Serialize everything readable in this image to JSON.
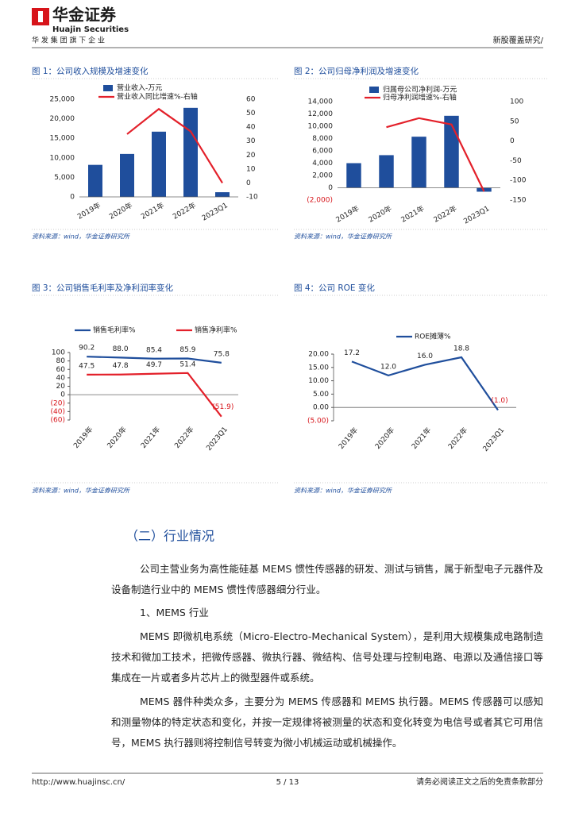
{
  "header": {
    "logo_cn": "华金证券",
    "logo_en": "Huajin Securities",
    "slogan": "华 发 集 团 旗 下 企 业",
    "report_type": "新股覆盖研究/"
  },
  "figures": [
    {
      "title": "图 1：公司收入规模及增速变化",
      "source": "资料来源：wind，华金证券研究所"
    },
    {
      "title": "图 2：公司归母净利润及增速变化",
      "source": "资料来源：wind，华金证券研究所"
    },
    {
      "title": "图 3：公司销售毛利率及净利润率变化",
      "source": "资料来源：wind，华金证券研究所"
    },
    {
      "title": "图 4：公司 ROE 变化",
      "source": "资料来源：wind，华金证券研究所"
    }
  ],
  "chart_data": [
    {
      "type": "combo",
      "categories": [
        "2019年",
        "2020年",
        "2021年",
        "2022年",
        "2023Q1"
      ],
      "series": [
        {
          "name": "营业收入-万元",
          "type": "bar",
          "color": "#1f4e9c",
          "values": [
            8200,
            11000,
            16700,
            22800,
            1200
          ]
        },
        {
          "name": "营业收入同比增速%-右轴",
          "type": "line",
          "axis": "y2",
          "color": "#e3202a",
          "values": [
            null,
            35,
            53,
            37,
            0
          ]
        }
      ],
      "ylim": [
        0,
        25000
      ],
      "yticks": [
        0,
        {
          "value": 5000,
          "label": "5,000"
        },
        {
          "value": 10000,
          "label": "10,000"
        },
        {
          "value": 15000,
          "label": "15,000"
        },
        {
          "value": 20000,
          "label": "20,000"
        },
        {
          "value": 25000,
          "label": "25,000"
        }
      ],
      "y2lim": [
        -10,
        60
      ],
      "y2ticks": [
        -10,
        0,
        10,
        20,
        30,
        40,
        50,
        60
      ]
    },
    {
      "type": "combo",
      "categories": [
        "2019年",
        "2020年",
        "2021年",
        "2022年",
        "2023Q1"
      ],
      "series": [
        {
          "name": "归属母公司净利润-万元",
          "type": "bar",
          "color": "#1f4e9c",
          "values": [
            4000,
            5300,
            8300,
            11700,
            -640
          ]
        },
        {
          "name": "归母净利润增速%-右轴",
          "type": "line",
          "axis": "y2",
          "color": "#e3202a",
          "values": [
            null,
            35,
            58,
            42,
            -128
          ]
        }
      ],
      "ylim": [
        -2000,
        14000
      ],
      "yticks": [
        {
          "value": -2000,
          "label": "(2,000)"
        },
        0,
        {
          "value": 2000,
          "label": "2,000"
        },
        {
          "value": 4000,
          "label": "4,000"
        },
        {
          "value": 6000,
          "label": "6,000"
        },
        {
          "value": 8000,
          "label": "8,000"
        },
        {
          "value": 10000,
          "label": "10,000"
        },
        {
          "value": 12000,
          "label": "12,000"
        },
        {
          "value": 14000,
          "label": "14,000"
        }
      ],
      "y2lim": [
        -150,
        100
      ],
      "y2ticks": [
        -150,
        -100,
        -50,
        0,
        50,
        100
      ]
    },
    {
      "type": "line",
      "categories": [
        "2019年",
        "2020年",
        "2021年",
        "2022年",
        "2023Q1"
      ],
      "series": [
        {
          "name": "销售毛利率%",
          "type": "line",
          "color": "#1f4e9c",
          "values": [
            90.2,
            88.0,
            85.4,
            85.9,
            75.8
          ],
          "value_labels": [
            "90.2",
            "88.0",
            "85.4",
            "85.9",
            "75.8"
          ]
        },
        {
          "name": "销售净利率%",
          "type": "line",
          "color": "#e3202a",
          "values": [
            47.5,
            47.8,
            49.7,
            51.4,
            -51.9
          ],
          "value_labels": [
            "47.5",
            "47.8",
            "49.7",
            "51.4",
            "(51.9)"
          ]
        }
      ],
      "ylim": [
        -60,
        100
      ],
      "yticks": [
        {
          "value": -60,
          "label": "(60)"
        },
        {
          "value": -40,
          "label": "(40)"
        },
        {
          "value": -20,
          "label": "(20)"
        },
        0,
        20,
        40,
        60,
        80,
        100
      ]
    },
    {
      "type": "line",
      "categories": [
        "2019年",
        "2020年",
        "2021年",
        "2022年",
        "2023Q1"
      ],
      "series": [
        {
          "name": "ROE摊薄%",
          "type": "line",
          "color": "#1f4e9c",
          "values": [
            17.2,
            12.0,
            16.0,
            18.8,
            -1.0
          ],
          "value_labels": [
            "17.2",
            "12.0",
            "16.0",
            "18.8",
            "(1.0)"
          ]
        }
      ],
      "ylim": [
        -5,
        20
      ],
      "yticks": [
        {
          "value": -5,
          "label": "(5.00)"
        },
        {
          "value": 0,
          "label": "0.00"
        },
        {
          "value": 5,
          "label": "5.00"
        },
        {
          "value": 10,
          "label": "10.00"
        },
        {
          "value": 15,
          "label": "15.00"
        },
        {
          "value": 20,
          "label": "20.00"
        }
      ]
    }
  ],
  "section": {
    "heading": "（二）行业情况",
    "paragraphs": [
      "公司主营业务为高性能硅基 MEMS 惯性传感器的研发、测试与销售，属于新型电子元器件及设备制造行业中的 MEMS 惯性传感器细分行业。",
      "1、MEMS 行业",
      "MEMS 即微机电系统（Micro-Electro-Mechanical System），是利用大规模集成电路制造技术和微加工技术，把微传感器、微执行器、微结构、信号处理与控制电路、电源以及通信接口等集成在一片或者多片芯片上的微型器件或系统。",
      "MEMS 器件种类众多，主要分为 MEMS 传感器和 MEMS 执行器。MEMS 传感器可以感知和测量物体的特定状态和变化，并按一定规律将被测量的状态和变化转变为电信号或者其它可用信号，MEMS 执行器则将控制信号转变为微小机械运动或机械操作。"
    ]
  },
  "footer": {
    "url": "http://www.huajinsc.cn/",
    "page": "5 / 13",
    "disclaimer": "请务必阅读正文之后的免责条款部分"
  }
}
